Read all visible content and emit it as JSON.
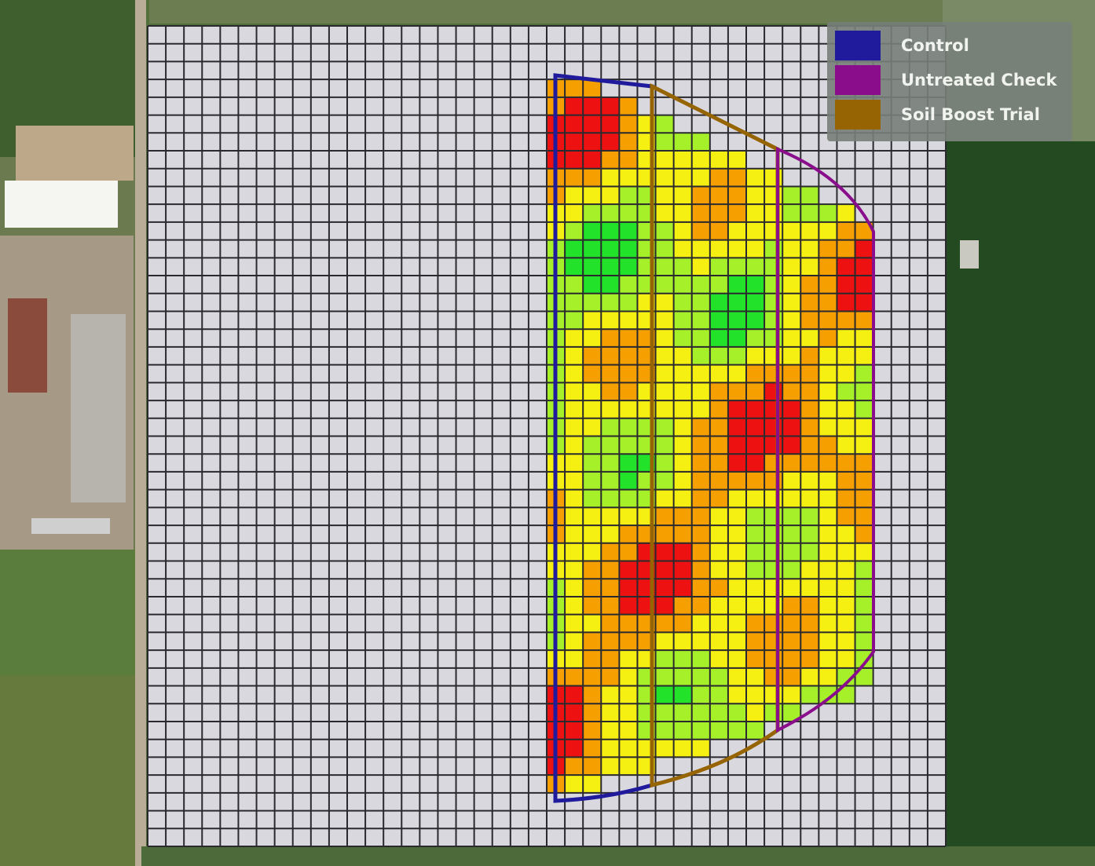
{
  "map": {
    "basemap": "satellite",
    "grid": {
      "cols": 44,
      "rows": 46,
      "empty_cell_color": "#d8d8de",
      "line_color": "#2a2a2e"
    },
    "value_palette": {
      "low": "#ee1111",
      "below_average": "#f5a000",
      "average": "#f5f011",
      "above_average": "#a6f02a",
      "high": "#22e22a"
    }
  },
  "legend": {
    "items": [
      {
        "label": "Control",
        "color": "#201a9c"
      },
      {
        "label": "Untreated Check",
        "color": "#8a0d8c"
      },
      {
        "label": "Soil Boost Trial",
        "color": "#966403"
      }
    ]
  }
}
